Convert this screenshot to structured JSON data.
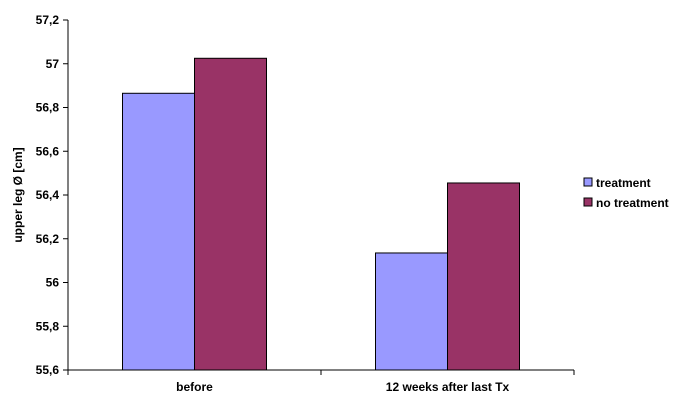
{
  "chart_data": {
    "type": "bar",
    "categories": [
      "before",
      "12 weeks after last Tx"
    ],
    "series": [
      {
        "name": "treatment",
        "values": [
          56.865,
          56.135
        ],
        "color": "#9999ff"
      },
      {
        "name": "no treatment",
        "values": [
          57.025,
          56.455
        ],
        "color": "#993366"
      }
    ],
    "title": "",
    "xlabel": "",
    "ylabel": "upper leg Ø [cm]",
    "ylim": [
      55.6,
      57.2
    ],
    "yticks": [
      55.6,
      55.8,
      56.0,
      56.2,
      56.4,
      56.6,
      56.8,
      57.0,
      57.2
    ],
    "ytick_labels": [
      "55,6",
      "55,8",
      "56",
      "56,2",
      "56,4",
      "56,6",
      "56,8",
      "57",
      "57,2"
    ],
    "grid": false,
    "legend_position": "right"
  }
}
